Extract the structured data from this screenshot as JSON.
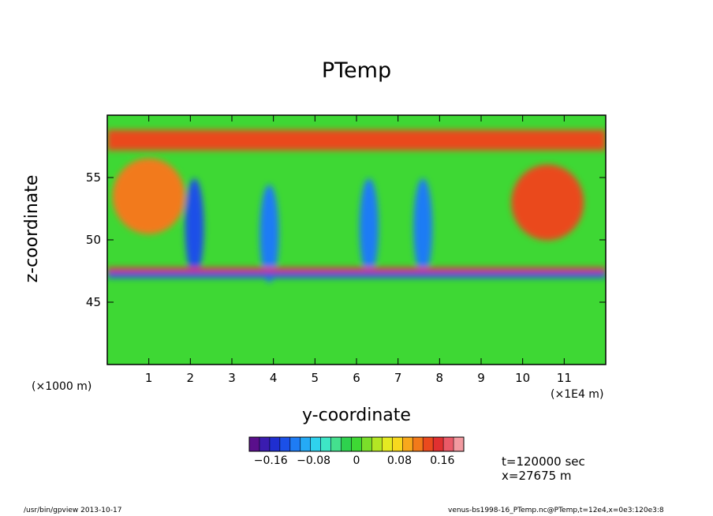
{
  "chart_data": {
    "type": "heatmap",
    "title": "PTemp",
    "xlabel": "y-coordinate",
    "ylabel": "z-coordinate",
    "x_unit": "(×1000 m)",
    "y_unit": "(×1E4 m)",
    "x_ticks": [
      1,
      2,
      3,
      4,
      5,
      6,
      7,
      8,
      9,
      10,
      11
    ],
    "y_ticks": [
      45,
      50,
      55
    ],
    "xlim": [
      0,
      12
    ],
    "ylim": [
      40,
      60
    ],
    "colorbar": {
      "min": -0.2,
      "max": 0.2,
      "ticks": [
        -0.16,
        -0.08,
        0,
        0.08,
        0.16
      ],
      "tick_labels": [
        "−0.16",
        "−0.08",
        "0",
        "0.08",
        "0.16"
      ],
      "colors": [
        "#5a0f8c",
        "#3a1cb0",
        "#1f2ed0",
        "#1b50e8",
        "#1e7cf5",
        "#25aaf5",
        "#2fd2ee",
        "#3ee6c6",
        "#44e08e",
        "#2ed24e",
        "#3ed834",
        "#7ade2a",
        "#b4e624",
        "#e4ea22",
        "#f8d81e",
        "#f8a81c",
        "#f27a1a",
        "#ea4a1e",
        "#e03030",
        "#ea5a68",
        "#f29aa0"
      ]
    },
    "regions": [
      {
        "kind": "background",
        "value": 0.0
      },
      {
        "kind": "warm-band",
        "y_center": 58.0,
        "value": 0.14
      },
      {
        "kind": "warm-blob",
        "x": 1.0,
        "y": 53.5,
        "value": 0.12
      },
      {
        "kind": "warm-blob",
        "x": 10.6,
        "y": 53.0,
        "value": 0.13
      },
      {
        "kind": "cold-streak",
        "x": 2.1,
        "y": 51.0,
        "value": -0.15
      },
      {
        "kind": "cold-streak",
        "x": 3.9,
        "y": 50.5,
        "value": -0.12
      },
      {
        "kind": "cold-streak",
        "x": 6.3,
        "y": 51.0,
        "value": -0.13
      },
      {
        "kind": "cold-streak",
        "x": 7.6,
        "y": 51.0,
        "value": -0.12
      },
      {
        "kind": "cold-band",
        "y_center": 47.2,
        "value": -0.14
      },
      {
        "kind": "warm-band",
        "y_center": 47.6,
        "value": 0.16
      }
    ]
  },
  "labels": {
    "info_time": "t=120000 sec",
    "info_x": "x=27675 m",
    "footer_left": "/usr/bin/gpview   2013-10-17",
    "footer_right": "venus-bs1998-16_PTemp.nc@PTemp,t=12e4,x=0e3:120e3:8"
  }
}
